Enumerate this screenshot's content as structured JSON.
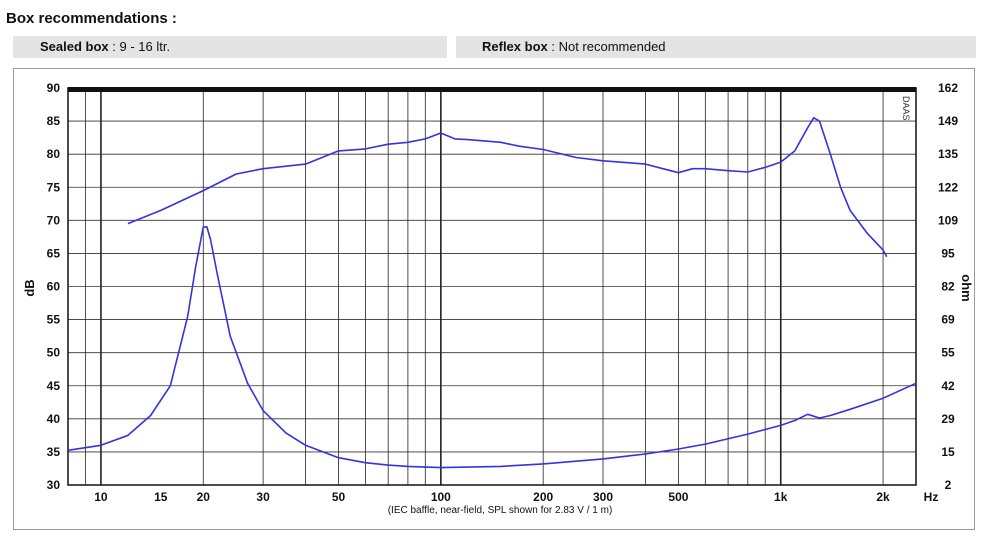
{
  "box_recommendations": {
    "heading": "Box  recommendations :",
    "sealed_label": "Sealed box",
    "sealed_value": " : 9 - 16 ltr.",
    "reflex_label": "Reflex box",
    "reflex_value": " : Not recommended"
  },
  "watermark": "DAAS",
  "chart_data": {
    "type": "line",
    "x_scale": "log",
    "xlim": [
      8,
      2500
    ],
    "x_ticks": [
      10,
      15,
      20,
      30,
      50,
      100,
      200,
      300,
      500,
      1000,
      2000
    ],
    "x_tick_labels": [
      "10",
      "15",
      "20",
      "30",
      "50",
      "100",
      "200",
      "300",
      "500",
      "1k",
      "2k"
    ],
    "x_unit": "Hz",
    "ylabel_left": "dB",
    "ylim_left": [
      30,
      90
    ],
    "y_left_ticks": [
      "90",
      "85",
      "80",
      "75",
      "70",
      "65",
      "60",
      "55",
      "50",
      "45",
      "40",
      "35",
      "30"
    ],
    "ylabel_right": "ohm",
    "ylim_right": [
      2,
      162
    ],
    "y_right_ticks": [
      "162",
      "149",
      "135",
      "122",
      "109",
      "95",
      "82",
      "69",
      "55",
      "42",
      "29",
      "15",
      "2"
    ],
    "note": "(IEC baffle, near-field, SPL shown for 2.83 V / 1 m)",
    "grid": true,
    "line_color": "#3333e0",
    "series": [
      {
        "axis": "left",
        "points": [
          [
            12,
            69.5
          ],
          [
            15,
            71.5
          ],
          [
            20,
            74.5
          ],
          [
            25,
            77
          ],
          [
            30,
            77.8
          ],
          [
            40,
            78.5
          ],
          [
            50,
            80.5
          ],
          [
            60,
            80.8
          ],
          [
            70,
            81.5
          ],
          [
            80,
            81.8
          ],
          [
            90,
            82.3
          ],
          [
            100,
            83.2
          ],
          [
            110,
            82.3
          ],
          [
            120,
            82.2
          ],
          [
            150,
            81.8
          ],
          [
            170,
            81.2
          ],
          [
            200,
            80.7
          ],
          [
            250,
            79.5
          ],
          [
            300,
            79
          ],
          [
            400,
            78.5
          ],
          [
            450,
            77.8
          ],
          [
            500,
            77.2
          ],
          [
            550,
            77.8
          ],
          [
            600,
            77.8
          ],
          [
            700,
            77.5
          ],
          [
            800,
            77.3
          ],
          [
            900,
            78
          ],
          [
            1000,
            78.8
          ],
          [
            1100,
            80.5
          ],
          [
            1200,
            84
          ],
          [
            1250,
            85.5
          ],
          [
            1300,
            85
          ],
          [
            1400,
            80
          ],
          [
            1500,
            75
          ],
          [
            1600,
            71.5
          ],
          [
            1800,
            68
          ],
          [
            2000,
            65.5
          ],
          [
            2050,
            64.5
          ]
        ]
      },
      {
        "axis": "right",
        "points": [
          [
            8,
            16
          ],
          [
            10,
            18
          ],
          [
            12,
            22
          ],
          [
            14,
            30
          ],
          [
            16,
            42
          ],
          [
            18,
            70
          ],
          [
            19,
            90
          ],
          [
            20,
            106
          ],
          [
            20.5,
            106
          ],
          [
            21,
            101
          ],
          [
            22,
            87
          ],
          [
            24,
            62
          ],
          [
            27,
            43
          ],
          [
            30,
            32
          ],
          [
            35,
            23
          ],
          [
            40,
            18
          ],
          [
            50,
            13
          ],
          [
            60,
            11
          ],
          [
            70,
            10
          ],
          [
            80,
            9.5
          ],
          [
            100,
            9
          ],
          [
            150,
            9.5
          ],
          [
            200,
            10.5
          ],
          [
            300,
            12.5
          ],
          [
            400,
            14.5
          ],
          [
            500,
            16.5
          ],
          [
            600,
            18.5
          ],
          [
            800,
            22.5
          ],
          [
            1000,
            26
          ],
          [
            1100,
            28
          ],
          [
            1200,
            30.5
          ],
          [
            1300,
            29
          ],
          [
            1400,
            30
          ],
          [
            1600,
            32.5
          ],
          [
            2000,
            37
          ],
          [
            2500,
            43
          ]
        ]
      }
    ]
  }
}
